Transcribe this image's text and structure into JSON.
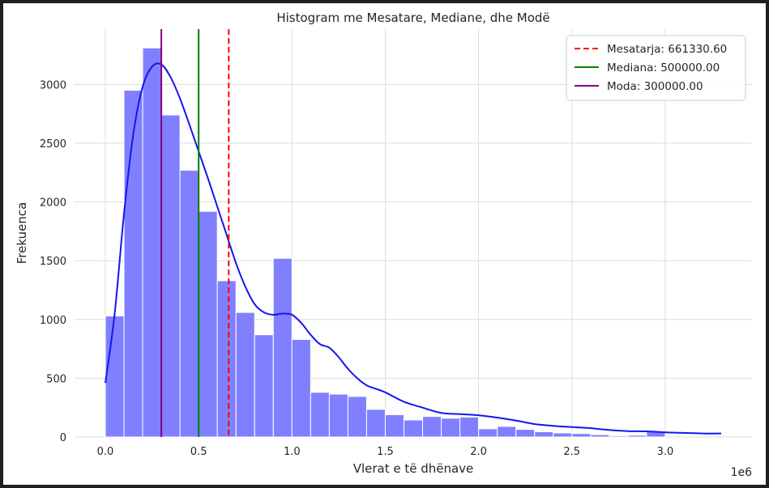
{
  "chart_data": {
    "type": "bar",
    "title": "Histogram me Mesatare, Mediane, dhe Modë",
    "xlabel": "Vlerat e të dhënave",
    "ylabel": "Frekuenca",
    "x_offset_label": "1e6",
    "x_scale": 1000000,
    "xlim": [
      -165000,
      3465000
    ],
    "ylim": [
      0,
      3470
    ],
    "x_ticks": [
      0,
      500000,
      1000000,
      1500000,
      2000000,
      2500000,
      3000000
    ],
    "x_tick_labels": [
      "0.0",
      "0.5",
      "1.0",
      "1.5",
      "2.0",
      "2.5",
      "3.0"
    ],
    "y_ticks": [
      0,
      500,
      1000,
      1500,
      2000,
      2500,
      3000
    ],
    "y_tick_labels": [
      "0",
      "500",
      "1000",
      "1500",
      "2000",
      "2500",
      "3000"
    ],
    "grid": true,
    "legend_position": "top-right",
    "bins": {
      "start": 0,
      "width": 100000,
      "counts": [
        1030,
        2950,
        3310,
        2740,
        2270,
        1920,
        1330,
        1060,
        870,
        1520,
        830,
        380,
        365,
        345,
        235,
        190,
        145,
        175,
        160,
        170,
        70,
        90,
        65,
        45,
        35,
        30,
        20,
        10,
        15,
        45
      ],
      "color": "#8080ff"
    },
    "kde": {
      "name": "",
      "color": "#1515ee",
      "x": [
        0,
        50000,
        100000,
        150000,
        200000,
        250000,
        300000,
        350000,
        400000,
        450000,
        500000,
        550000,
        600000,
        650000,
        700000,
        750000,
        800000,
        850000,
        900000,
        950000,
        1000000,
        1050000,
        1100000,
        1150000,
        1200000,
        1250000,
        1300000,
        1350000,
        1400000,
        1450000,
        1500000,
        1600000,
        1700000,
        1800000,
        1900000,
        2000000,
        2100000,
        2200000,
        2300000,
        2400000,
        2500000,
        2600000,
        2700000,
        2800000,
        2900000,
        3000000,
        3100000,
        3200000,
        3300000
      ],
      "y": [
        460,
        1050,
        1900,
        2580,
        2980,
        3150,
        3170,
        3060,
        2880,
        2660,
        2430,
        2200,
        1960,
        1720,
        1480,
        1280,
        1130,
        1060,
        1040,
        1050,
        1040,
        970,
        870,
        790,
        760,
        680,
        580,
        500,
        440,
        410,
        380,
        300,
        250,
        205,
        195,
        185,
        165,
        140,
        110,
        95,
        85,
        75,
        60,
        50,
        48,
        40,
        35,
        30,
        30
      ]
    },
    "lines": [
      {
        "name": "Mesatarja: 661330.60",
        "value": 661330.6,
        "color": "#ff0000",
        "style": "dashed"
      },
      {
        "name": "Mediana: 500000.00",
        "value": 500000,
        "color": "#008000",
        "style": "solid"
      },
      {
        "name": "Moda: 300000.00",
        "value": 300000,
        "color": "#800080",
        "style": "solid"
      }
    ]
  }
}
